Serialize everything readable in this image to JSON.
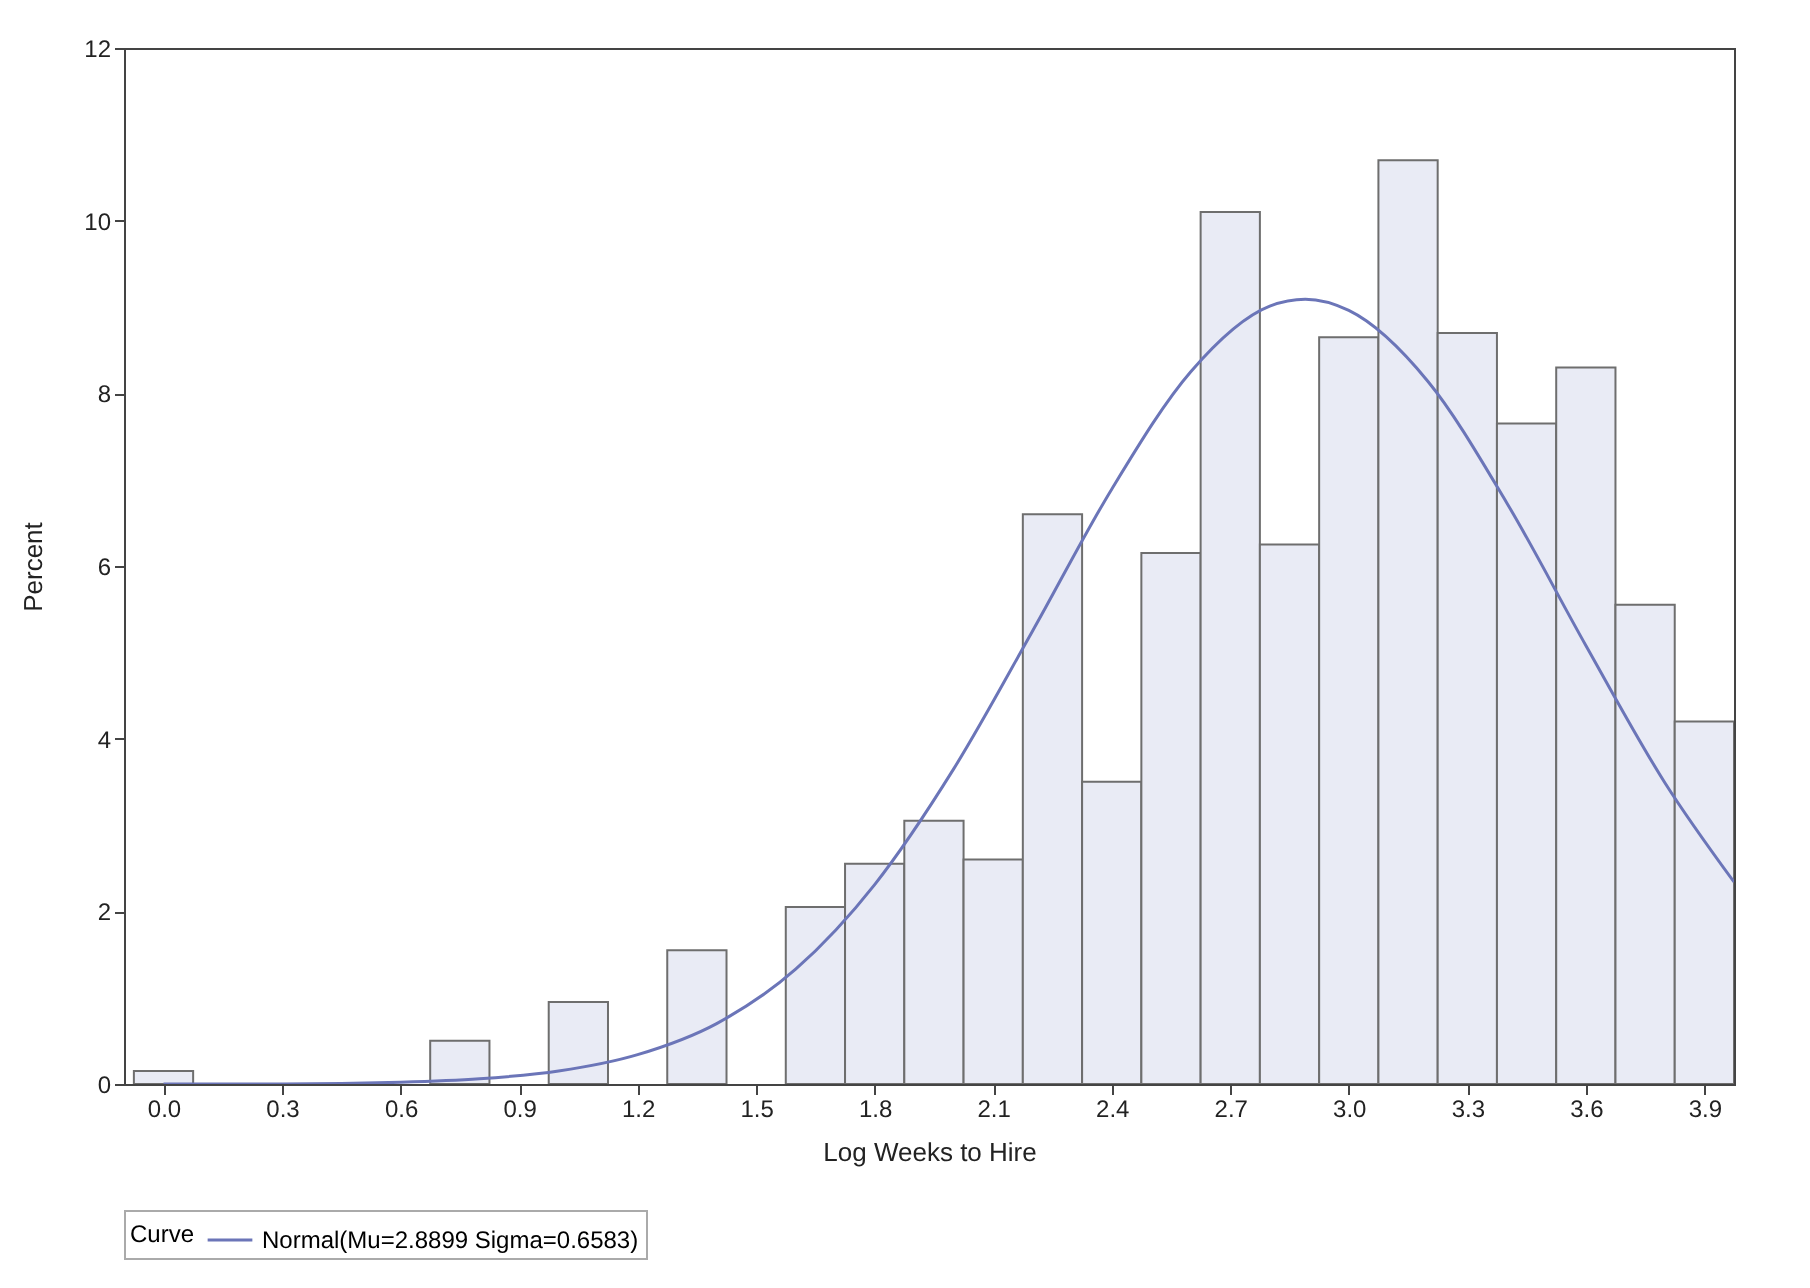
{
  "chart_data": {
    "type": "histogram",
    "xlabel": "Log Weeks to Hire",
    "ylabel": "Percent",
    "legend_title": "Curve",
    "legend": "bottom",
    "bins": [
      -0.075,
      0.075,
      0.225,
      0.375,
      0.525,
      0.675,
      0.825,
      0.975,
      1.125,
      1.275,
      1.425,
      1.575,
      1.725,
      1.875,
      2.025,
      2.175,
      2.325,
      2.475,
      2.625,
      2.775,
      2.925,
      3.075,
      3.225,
      3.375,
      3.525,
      3.675,
      3.825,
      3.975
    ],
    "values": [
      0.15,
      0,
      0,
      0,
      0,
      0.5,
      0,
      0.95,
      0,
      1.55,
      0,
      2.05,
      2.55,
      3.05,
      2.6,
      6.6,
      3.5,
      6.15,
      10.1,
      6.25,
      8.65,
      10.7,
      8.7,
      7.65,
      8.3,
      5.55,
      4.2
    ],
    "color": "#e9ebf5",
    "series": [
      {
        "type": "line",
        "name": "Normal(Mu=2.8899 Sigma=0.6583)",
        "color": "#6b75b8",
        "x": [
          0.0,
          0.3,
          0.6,
          0.8,
          1.0,
          1.2,
          1.4,
          1.6,
          1.8,
          2.0,
          2.2,
          2.4,
          2.6,
          2.8,
          2.89,
          3.0,
          3.2,
          3.4,
          3.6,
          3.8,
          3.975
        ],
        "values": [
          0.0,
          0.0,
          0.02,
          0.06,
          0.15,
          0.34,
          0.7,
          1.33,
          2.31,
          3.65,
          5.25,
          6.89,
          8.25,
          9.01,
          9.09,
          8.96,
          8.14,
          6.73,
          5.08,
          3.49,
          2.34
        ]
      }
    ],
    "xlim": [
      -0.1,
      3.975
    ],
    "xticks": [
      {
        "value": 0,
        "label": "0.0"
      },
      0.3,
      0.6,
      0.9,
      1.2,
      1.5,
      1.8,
      2.1,
      2.4,
      2.7,
      {
        "value": 3,
        "label": "3.0"
      },
      3.3,
      3.6,
      3.9
    ],
    "ylim": [
      0,
      12
    ],
    "yticks": [
      0,
      2,
      4,
      6,
      8,
      10,
      12
    ]
  }
}
